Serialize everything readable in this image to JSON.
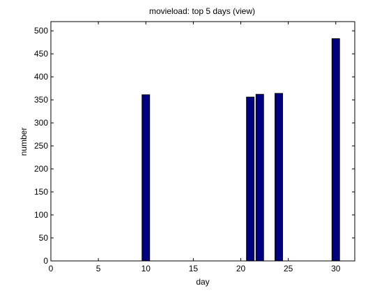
{
  "chart_data": {
    "type": "bar",
    "title": "movieload: top 5 days (view)",
    "xlabel": "day",
    "ylabel": "number",
    "x": [
      10,
      21,
      22,
      24,
      30
    ],
    "values": [
      361,
      356,
      362,
      364,
      483
    ],
    "xlim": [
      0,
      32
    ],
    "ylim": [
      0,
      520
    ],
    "xticks": [
      0,
      5,
      10,
      15,
      20,
      25,
      30
    ],
    "yticks": [
      0,
      50,
      100,
      150,
      200,
      250,
      300,
      350,
      400,
      450,
      500
    ],
    "grid": false,
    "colors": {
      "bar_fill": "#000080",
      "bar_edge": "#000000",
      "axes": "#000000",
      "background": "#ffffff"
    }
  }
}
